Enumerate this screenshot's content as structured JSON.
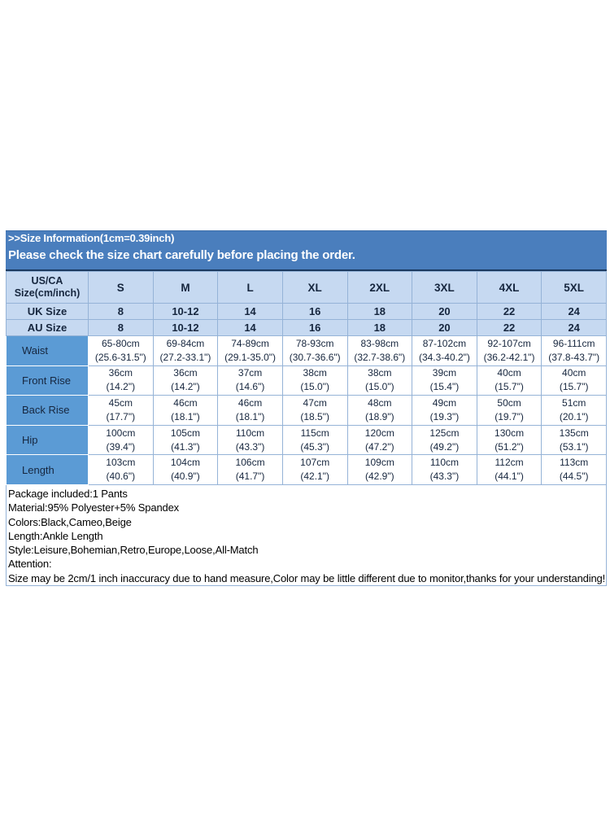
{
  "header": {
    "title": ">>Size Information(1cm=0.39inch)",
    "subtitle": "Please check the size chart carefully before placing the order."
  },
  "size_chart": {
    "columns": [
      "US/CA Size(cm/inch)",
      "S",
      "M",
      "L",
      "XL",
      "2XL",
      "3XL",
      "4XL",
      "5XL"
    ],
    "size_rows": [
      {
        "label": "UK Size",
        "values": [
          "8",
          "10-12",
          "14",
          "16",
          "18",
          "20",
          "22",
          "24"
        ]
      },
      {
        "label": "AU Size",
        "values": [
          "8",
          "10-12",
          "14",
          "16",
          "18",
          "20",
          "22",
          "24"
        ]
      }
    ],
    "measurement_rows": [
      {
        "label": "Waist",
        "values": [
          [
            "65-80cm",
            "(25.6-31.5\")"
          ],
          [
            "69-84cm",
            "(27.2-33.1\")"
          ],
          [
            "74-89cm",
            "(29.1-35.0\")"
          ],
          [
            "78-93cm",
            "(30.7-36.6\")"
          ],
          [
            "83-98cm",
            "(32.7-38.6\")"
          ],
          [
            "87-102cm",
            "(34.3-40.2\")"
          ],
          [
            "92-107cm",
            "(36.2-42.1\")"
          ],
          [
            "96-111cm",
            "(37.8-43.7\")"
          ]
        ]
      },
      {
        "label": "Front Rise",
        "values": [
          [
            "36cm",
            "(14.2\")"
          ],
          [
            "36cm",
            "(14.2\")"
          ],
          [
            "37cm",
            "(14.6\")"
          ],
          [
            "38cm",
            "(15.0\")"
          ],
          [
            "38cm",
            "(15.0\")"
          ],
          [
            "39cm",
            "(15.4\")"
          ],
          [
            "40cm",
            "(15.7\")"
          ],
          [
            "40cm",
            "(15.7\")"
          ]
        ]
      },
      {
        "label": "Back Rise",
        "values": [
          [
            "45cm",
            "(17.7\")"
          ],
          [
            "46cm",
            "(18.1\")"
          ],
          [
            "46cm",
            "(18.1\")"
          ],
          [
            "47cm",
            "(18.5\")"
          ],
          [
            "48cm",
            "(18.9\")"
          ],
          [
            "49cm",
            "(19.3\")"
          ],
          [
            "50cm",
            "(19.7\")"
          ],
          [
            "51cm",
            "(20.1\")"
          ]
        ]
      },
      {
        "label": "Hip",
        "values": [
          [
            "100cm",
            "(39.4\")"
          ],
          [
            "105cm",
            "(41.3\")"
          ],
          [
            "110cm",
            "(43.3\")"
          ],
          [
            "115cm",
            "(45.3\")"
          ],
          [
            "120cm",
            "(47.2\")"
          ],
          [
            "125cm",
            "(49.2\")"
          ],
          [
            "130cm",
            "(51.2\")"
          ],
          [
            "135cm",
            "(53.1\")"
          ]
        ]
      },
      {
        "label": "Length",
        "values": [
          [
            "103cm",
            "(40.6\")"
          ],
          [
            "104cm",
            "(40.9\")"
          ],
          [
            "106cm",
            "(41.7\")"
          ],
          [
            "107cm",
            "(42.1\")"
          ],
          [
            "109cm",
            "(42.9\")"
          ],
          [
            "110cm",
            "(43.3\")"
          ],
          [
            "112cm",
            "(44.1\")"
          ],
          [
            "113cm",
            "(44.5\")"
          ]
        ]
      }
    ]
  },
  "notes": {
    "lines": [
      "Package included:1 Pants",
      "Material:95% Polyester+5% Spandex",
      "Colors:Black,Cameo,Beige",
      "Length:Ankle Length",
      "Style:Leisure,Bohemian,Retro,Europe,Loose,All-Match",
      "Attention:",
      "Size may be 2cm/1 inch inaccuracy due to hand measure,Color may be little different due to monitor,thanks for your understanding!"
    ]
  },
  "colors": {
    "bar_blue": "#4A7EBD",
    "bar_edge": "#3A6CA8",
    "dark_line": "#1B3A60",
    "header_row_bg": "#C6D9F1",
    "label_col_bg": "#5B9BD5",
    "grid_border": "#95B3D7",
    "table_text": "#16263E"
  }
}
